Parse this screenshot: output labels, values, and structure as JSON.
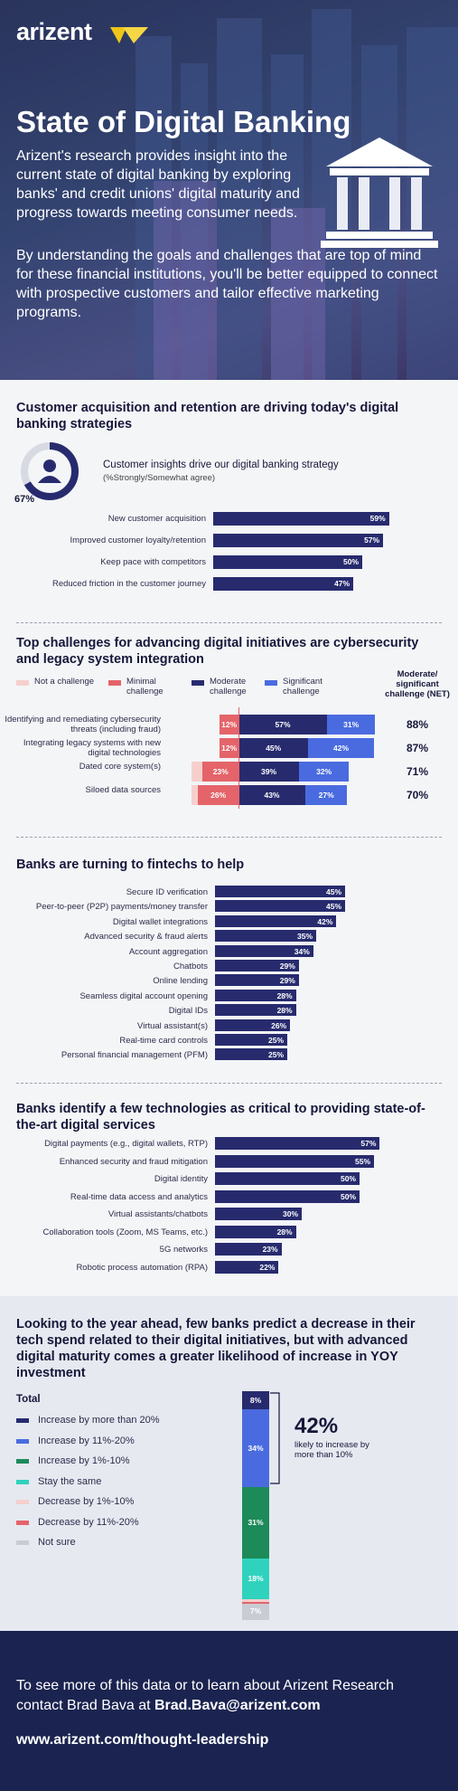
{
  "header": {
    "logo": "arizent",
    "title": "State of Digital Banking",
    "intro": "Arizent's research provides insight into the current state of digital banking by exploring banks' and credit unions' digital maturity and progress towards meeting consumer needs.",
    "intro2": "By understanding the goals and challenges that are top of mind for these financial institutions, you'll be better equipped to connect with prospective customers and tailor effective marketing programs."
  },
  "chart_data": [
    {
      "type": "bar",
      "title": "Customer acquisition and retention are driving today's digital banking strategies",
      "callout": {
        "value": "67%",
        "value_num": 67,
        "title": "Customer insights drive our digital banking strategy",
        "subtitle": "(%Strongly/Somewhat agree)"
      },
      "categories": [
        "New customer acquisition",
        "Improved customer loyalty/retention",
        "Keep pace with competitors",
        "Reduced friction in the customer journey"
      ],
      "values": [
        59,
        57,
        50,
        47
      ],
      "value_labels": [
        "59%",
        "57%",
        "50%",
        "47%"
      ]
    },
    {
      "type": "bar",
      "stacked": true,
      "title": "Top challenges for advancing digital initiatives are cybersecurity and legacy system integration",
      "legend": [
        "Not a challenge",
        "Minimal challenge",
        "Moderate challenge",
        "Significant challenge"
      ],
      "net_header": "Moderate/ significant challenge (NET)",
      "colors": [
        "#f6cfcd",
        "#e4646a",
        "#272b6e",
        "#4a6be0"
      ],
      "categories": [
        "Identifying and remediating cybersecurity threats (including fraud)",
        "Integrating legacy systems with new digital technologies",
        "Dated core system(s)",
        "Siloed data sources"
      ],
      "series": [
        {
          "name": "Not a challenge",
          "values": [
            0,
            0,
            7,
            4
          ]
        },
        {
          "name": "Minimal challenge",
          "values": [
            12,
            12,
            23,
            26
          ]
        },
        {
          "name": "Moderate challenge",
          "values": [
            57,
            45,
            39,
            43
          ]
        },
        {
          "name": "Significant challenge",
          "values": [
            31,
            42,
            32,
            27
          ]
        }
      ],
      "segment_labels": [
        [
          "",
          "12%",
          "57%",
          "31%"
        ],
        [
          "",
          "12%",
          "45%",
          "42%"
        ],
        [
          "",
          "23%",
          "39%",
          "32%"
        ],
        [
          "",
          "26%",
          "43%",
          "27%"
        ]
      ],
      "net": [
        "88%",
        "87%",
        "71%",
        "70%"
      ]
    },
    {
      "type": "bar",
      "title": "Banks are turning to fintechs to help",
      "categories": [
        "Secure ID verification",
        "Peer-to-peer (P2P) payments/money transfer",
        "Digital wallet integrations",
        "Advanced security & fraud alerts",
        "Account aggregation",
        "Chatbots",
        "Online lending",
        "Seamless digital account opening",
        "Digital IDs",
        "Virtual assistant(s)",
        "Real-time card controls",
        "Personal financial management (PFM)"
      ],
      "values": [
        45,
        45,
        42,
        35,
        34,
        29,
        29,
        28,
        28,
        26,
        25,
        25
      ],
      "value_labels": [
        "45%",
        "45%",
        "42%",
        "35%",
        "34%",
        "29%",
        "29%",
        "28%",
        "28%",
        "26%",
        "25%",
        "25%"
      ]
    },
    {
      "type": "bar",
      "title": "Banks identify a few technologies as critical to providing state-of-the-art digital services",
      "categories": [
        "Digital payments (e.g., digital wallets, RTP)",
        "Enhanced security and fraud mitigation",
        "Digital identity",
        "Real-time data access and analytics",
        "Virtual assistants/chatbots",
        "Collaboration tools (Zoom, MS Teams, etc.)",
        "5G networks",
        "Robotic process automation (RPA)"
      ],
      "values": [
        57,
        55,
        50,
        50,
        30,
        28,
        23,
        22
      ],
      "value_labels": [
        "57%",
        "55%",
        "50%",
        "50%",
        "30%",
        "28%",
        "23%",
        "22%"
      ]
    },
    {
      "type": "bar",
      "stacked": true,
      "title": "Looking to the year ahead, few banks predict a decrease in their tech spend related to their digital initiatives, but with advanced digital maturity comes a greater likelihood of increase in YOY investment",
      "categories": [
        "Total"
      ],
      "legend": [
        "Increase by more than 20%",
        "Increase by 11%-20%",
        "Increase by 1%-10%",
        "Stay the same",
        "Decrease by 1%-10%",
        "Decrease by 11%-20%",
        "Not sure"
      ],
      "colors": [
        "#272b6e",
        "#4a6be0",
        "#1d8a5a",
        "#2fd3bd",
        "#f6cfcd",
        "#e4646a",
        "#c9ccd4"
      ],
      "series": [
        {
          "name": "Increase by more than 20%",
          "values": [
            8
          ]
        },
        {
          "name": "Increase by 11%-20%",
          "values": [
            34
          ]
        },
        {
          "name": "Increase by 1%-10%",
          "values": [
            31
          ]
        },
        {
          "name": "Stay the same",
          "values": [
            18
          ]
        },
        {
          "name": "Decrease by 1%-10%",
          "values": [
            1
          ]
        },
        {
          "name": "Decrease by 11%-20%",
          "values": [
            1
          ]
        },
        {
          "name": "Not sure",
          "values": [
            7
          ]
        }
      ],
      "segment_labels": [
        "8%",
        "34%",
        "31%",
        "18%",
        "",
        "",
        "7%"
      ],
      "callout": {
        "value": "42%",
        "text": "likely to increase by more than 10%"
      }
    }
  ],
  "footer": {
    "line1": "To see more of this data or to learn about Arizent Research",
    "line2_prefix": "contact Brad Bava at ",
    "email": "Brad.Bava@arizent.com",
    "url": "www.arizent.com/thought-leadership"
  }
}
